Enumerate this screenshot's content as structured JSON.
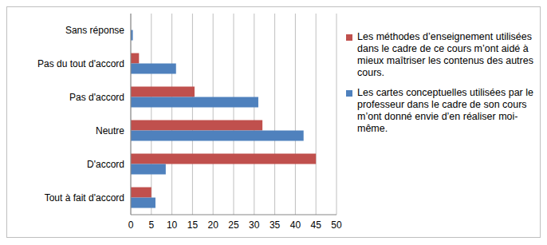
{
  "chart_data": {
    "type": "bar",
    "orientation": "horizontal",
    "categories": [
      "Sans réponse",
      "Pas du tout d'accord",
      "Pas d'accord",
      "Neutre",
      "D'accord",
      "Tout à fait d'accord"
    ],
    "series": [
      {
        "name": "Les méthodes d’enseignement utilisées dans le cadre de ce cours m’ont aidé à mieux maîtriser les contenus des autres cours.",
        "color": "#c0504d",
        "values": [
          0,
          2,
          15.5,
          32,
          45,
          5
        ]
      },
      {
        "name": "Les cartes conceptuelles utilisées par le professeur dans le cadre de son cours m’ont donné envie d’en réaliser moi-même.",
        "color": "#4f81bd",
        "values": [
          0.5,
          11,
          31,
          42,
          8.5,
          6
        ]
      }
    ],
    "xlim": [
      0,
      50
    ],
    "xticks": [
      0,
      5,
      10,
      15,
      20,
      25,
      30,
      35,
      40,
      45,
      50
    ],
    "grid": true,
    "legend": "right"
  }
}
